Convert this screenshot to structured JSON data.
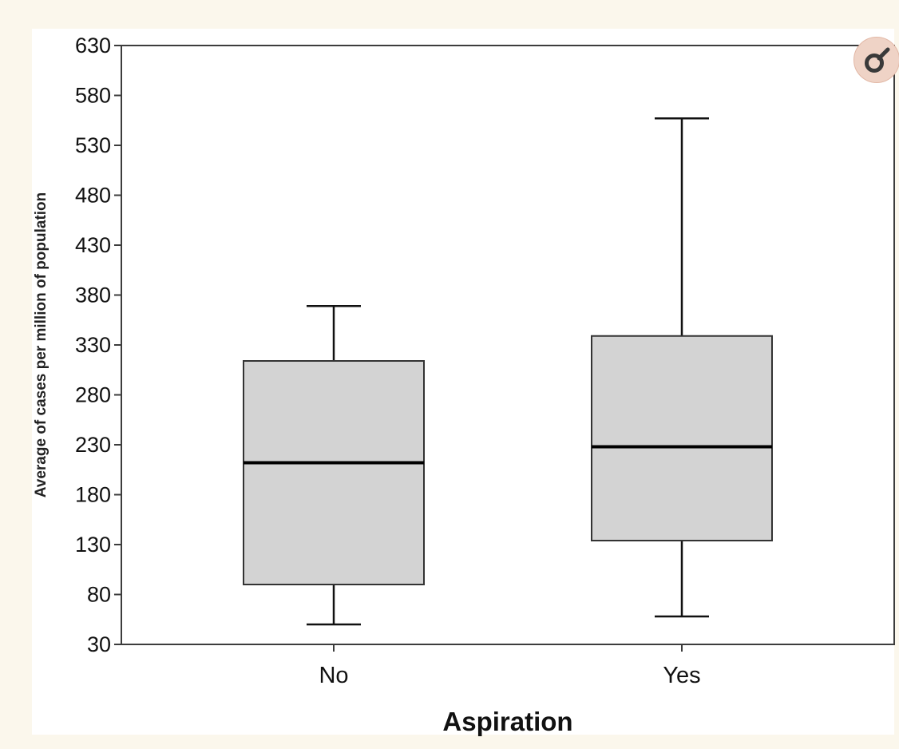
{
  "chart_data": {
    "type": "box",
    "ylabel": "Average of cases per million of population",
    "xlabel": "Aspiration",
    "ylim": [
      30,
      630
    ],
    "yticks": [
      30,
      80,
      130,
      180,
      230,
      280,
      330,
      380,
      430,
      480,
      530,
      580,
      630
    ],
    "categories": [
      "No",
      "Yes"
    ],
    "boxes": [
      {
        "category": "No",
        "min": 50,
        "q1": 90,
        "median": 212,
        "q3": 314,
        "max": 369
      },
      {
        "category": "Yes",
        "min": 58,
        "q1": 134,
        "median": 228,
        "q3": 339,
        "max": 557
      }
    ],
    "box_fill": "#d3d3d3",
    "grid": false
  },
  "ui": {
    "zoom_icon": "magnify-icon",
    "zoom_color": "#3a3a3a"
  }
}
